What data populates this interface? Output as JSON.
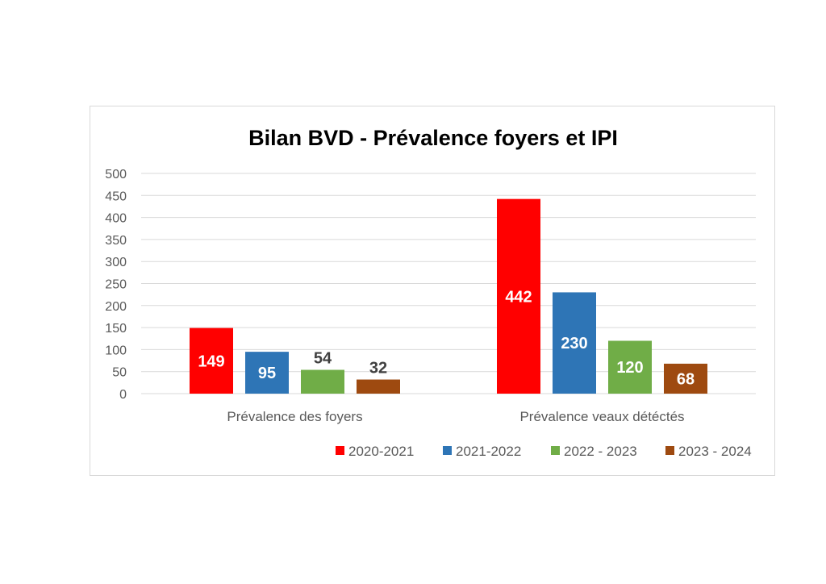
{
  "chart_data": {
    "type": "bar",
    "title": "Bilan BVD - Prévalence foyers et IPI",
    "categories": [
      "Prévalence des foyers",
      "Prévalence veaux détéctés"
    ],
    "series": [
      {
        "name": "2020-2021",
        "values": [
          149,
          442
        ],
        "color": "#ff0000"
      },
      {
        "name": "2021-2022",
        "values": [
          95,
          230
        ],
        "color": "#2e75b6"
      },
      {
        "name": "2022 - 2023",
        "values": [
          54,
          120
        ],
        "color": "#70ad47"
      },
      {
        "name": "2023 - 2024",
        "values": [
          32,
          68
        ],
        "color": "#9e4a10"
      }
    ],
    "ylim": [
      0,
      500
    ],
    "yticks": [
      0,
      50,
      100,
      150,
      200,
      250,
      300,
      350,
      400,
      450,
      500
    ],
    "grid": true,
    "legend_position": "bottom-right"
  }
}
